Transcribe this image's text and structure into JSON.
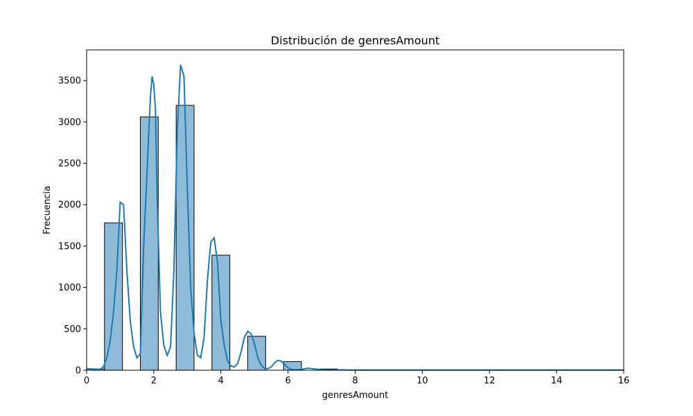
{
  "chart_data": {
    "type": "bar",
    "title": "Distribución de genresAmount",
    "xlabel": "genresAmount",
    "ylabel": "Frecuencia",
    "xlim": [
      0,
      16
    ],
    "ylim": [
      0,
      3870
    ],
    "xticks": [
      0,
      2,
      4,
      6,
      8,
      10,
      12,
      14,
      16
    ],
    "yticks": [
      0,
      500,
      1000,
      1500,
      2000,
      2500,
      3000,
      3500
    ],
    "grid": false,
    "bar_color": "#1f77b4",
    "bar_alpha": 0.5,
    "edge_color": "#000000",
    "kde_color": "#1f77b4",
    "bins": [
      {
        "x0": 0.0,
        "x1": 0.533,
        "value": 15
      },
      {
        "x0": 0.533,
        "x1": 1.067,
        "value": 1780
      },
      {
        "x0": 1.6,
        "x1": 2.133,
        "value": 3060
      },
      {
        "x0": 2.667,
        "x1": 3.2,
        "value": 3200
      },
      {
        "x0": 3.733,
        "x1": 4.267,
        "value": 1390
      },
      {
        "x0": 4.8,
        "x1": 5.333,
        "value": 410
      },
      {
        "x0": 5.867,
        "x1": 6.4,
        "value": 105
      },
      {
        "x0": 6.933,
        "x1": 7.467,
        "value": 15
      }
    ],
    "kde": {
      "x": [
        0.0,
        0.2,
        0.4,
        0.5,
        0.6,
        0.7,
        0.8,
        0.9,
        1.0,
        1.1,
        1.2,
        1.3,
        1.4,
        1.5,
        1.6,
        1.7,
        1.8,
        1.9,
        1.95,
        2.0,
        2.05,
        2.1,
        2.2,
        2.3,
        2.4,
        2.5,
        2.6,
        2.7,
        2.8,
        2.9,
        3.0,
        3.1,
        3.2,
        3.3,
        3.4,
        3.5,
        3.6,
        3.7,
        3.8,
        3.9,
        4.0,
        4.1,
        4.2,
        4.3,
        4.4,
        4.5,
        4.6,
        4.7,
        4.8,
        4.9,
        5.0,
        5.1,
        5.2,
        5.3,
        5.4,
        5.5,
        5.6,
        5.7,
        5.8,
        5.9,
        6.0,
        6.1,
        6.2,
        6.4,
        6.6,
        6.8,
        7.0,
        7.2,
        7.5,
        8.0,
        9.0,
        10.0,
        12.0,
        14.0,
        16.0
      ],
      "y": [
        20,
        15,
        10,
        40,
        150,
        350,
        700,
        1200,
        2030,
        2000,
        1200,
        600,
        280,
        150,
        200,
        1500,
        2400,
        3300,
        3550,
        3450,
        3150,
        2100,
        700,
        300,
        180,
        280,
        1200,
        2900,
        3690,
        3550,
        2200,
        1000,
        450,
        180,
        150,
        400,
        1100,
        1550,
        1600,
        1300,
        600,
        300,
        110,
        50,
        40,
        80,
        220,
        400,
        470,
        440,
        320,
        150,
        60,
        20,
        20,
        40,
        90,
        120,
        110,
        70,
        30,
        10,
        5,
        10,
        25,
        15,
        5,
        3,
        5,
        2,
        2,
        2,
        2,
        2,
        2
      ]
    }
  }
}
